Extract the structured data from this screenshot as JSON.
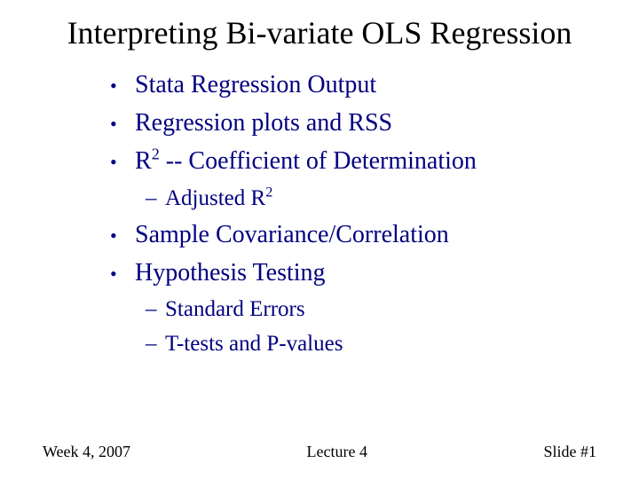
{
  "title": "Interpreting Bi-variate OLS Regression",
  "colors": {
    "title": "#000000",
    "body": "#000080",
    "footer": "#000000",
    "background": "#ffffff"
  },
  "bullets": [
    {
      "level": 1,
      "text": "Stata Regression Output"
    },
    {
      "level": 1,
      "text": "Regression plots and RSS"
    },
    {
      "level": 1,
      "pre": "R",
      "sup": "2",
      "post": " -- Coefficient of Determination"
    },
    {
      "level": 2,
      "pre": "Adjusted R",
      "sup": "2",
      "post": ""
    },
    {
      "level": 1,
      "text": "Sample Covariance/Correlation"
    },
    {
      "level": 1,
      "text": "Hypothesis Testing"
    },
    {
      "level": 2,
      "text": "Standard Errors"
    },
    {
      "level": 2,
      "text": "T-tests and P-values"
    }
  ],
  "footer": {
    "left": "Week 4, 2007",
    "center": "Lecture 4",
    "right": "Slide #1"
  }
}
